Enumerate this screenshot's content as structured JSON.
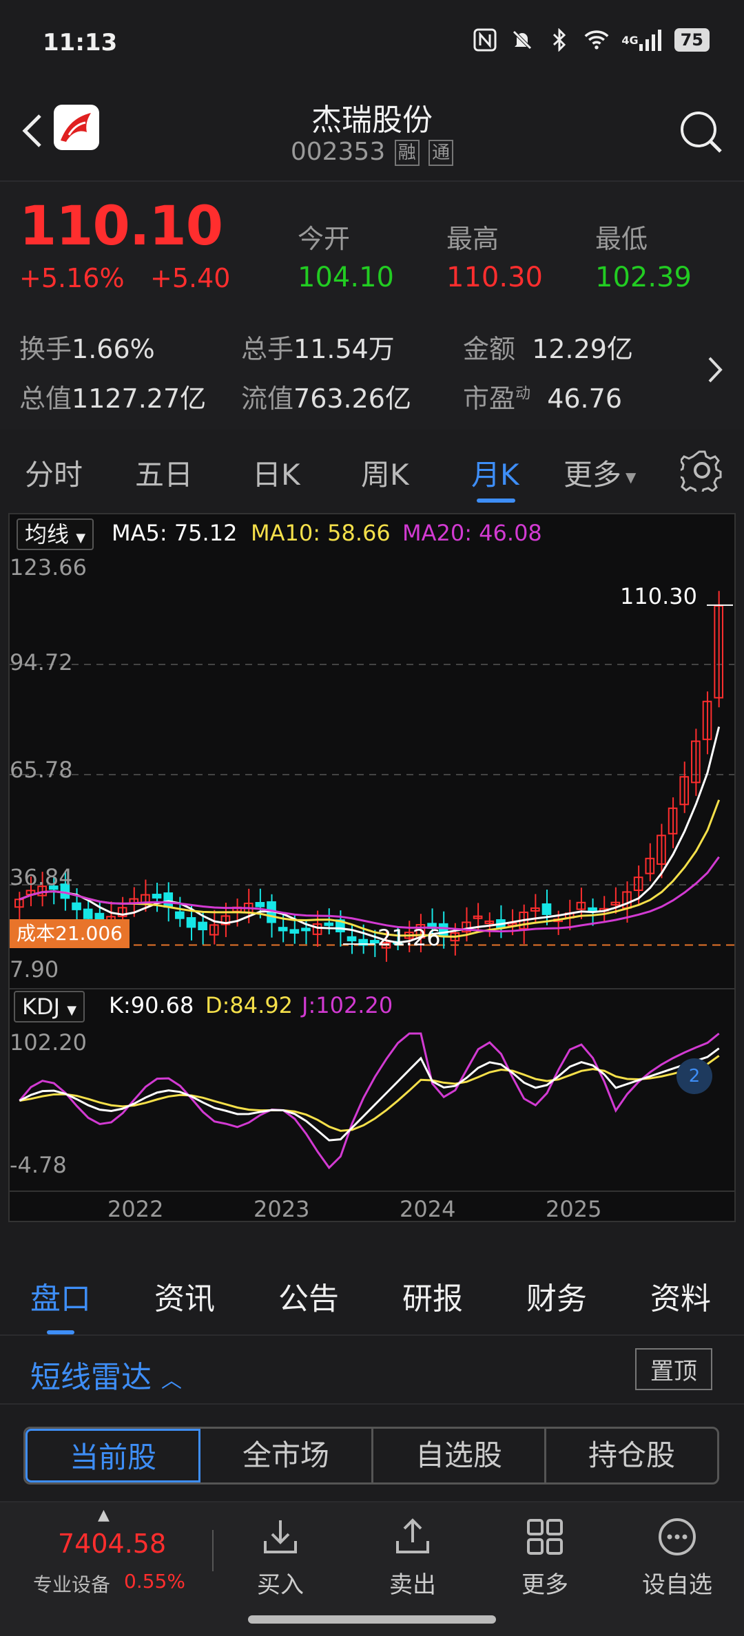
{
  "status_bar": {
    "time": "11:13",
    "network": "4G",
    "battery": "75"
  },
  "header": {
    "title": "杰瑞股份",
    "code": "002353",
    "tags": [
      "融",
      "通"
    ]
  },
  "quote": {
    "price": "110.10",
    "change_pct": "+5.16%",
    "change": "+5.40",
    "open_label": "今开",
    "open": "104.10",
    "high_label": "最高",
    "high": "110.30",
    "low_label": "最低",
    "low": "102.39",
    "stats": [
      {
        "label": "换手",
        "value": "1.66%"
      },
      {
        "label": "总手",
        "value": "11.54万"
      },
      {
        "label": "金额",
        "value": "12.29亿"
      },
      {
        "label": "总值",
        "value": "1127.27亿"
      },
      {
        "label": "流值",
        "value": "763.26亿"
      },
      {
        "label": "市盈",
        "sup": "动",
        "value": "46.76"
      }
    ]
  },
  "period_tabs": {
    "items": [
      "分时",
      "五日",
      "日K",
      "周K",
      "月K",
      "更多"
    ],
    "active": "月K"
  },
  "chart": {
    "ma_selector": "均线",
    "ma5": "MA5: 75.12",
    "ma10": "MA10: 58.66",
    "ma20": "MA20: 46.08",
    "price_axis": [
      "123.66",
      "94.72",
      "65.78",
      "36.84",
      "7.90"
    ],
    "max_label": "110.30",
    "min_label": "21.26",
    "cost_label": "成本21.006",
    "kdj_selector": "KDJ",
    "k": "K:90.68",
    "d": "D:84.92",
    "j": "J:102.20",
    "kdj_axis": [
      "102.20",
      "-4.78"
    ],
    "x_labels": [
      "2022",
      "2023",
      "2024",
      "2025"
    ],
    "badge": "2",
    "colors": {
      "up": "#ff2e2e",
      "down": "#16e6e6",
      "ma5": "#ffffff",
      "ma10": "#f5e04a",
      "ma20": "#d23ad2"
    }
  },
  "chart_data": {
    "type": "candlestick",
    "ylim": [
      7.9,
      123.66
    ],
    "series": [
      {
        "name": "MA5",
        "value": 75.12
      },
      {
        "name": "MA10",
        "value": 58.66
      },
      {
        "name": "MA20",
        "value": 46.08
      }
    ],
    "kdj": {
      "K": 90.68,
      "D": 84.92,
      "J": 102.2,
      "ylim": [
        -4.78,
        102.2
      ]
    },
    "x_ticks": [
      "2022",
      "2023",
      "2024",
      "2025"
    ],
    "high": 110.3,
    "low": 21.26,
    "last": 110.1,
    "cost": 21.006
  },
  "info_tabs": {
    "items": [
      "盘口",
      "资讯",
      "公告",
      "研报",
      "财务",
      "资料"
    ],
    "active": "盘口"
  },
  "radar": {
    "title": "短线雷达",
    "pin": "置顶"
  },
  "segment": {
    "items": [
      "当前股",
      "全市场",
      "自选股",
      "持仓股"
    ],
    "active": "当前股"
  },
  "bottom_bar": {
    "index_value": "7404.58",
    "index_name": "专业设备",
    "index_pct": "0.55%",
    "actions": [
      "买入",
      "卖出",
      "更多",
      "设自选"
    ]
  }
}
